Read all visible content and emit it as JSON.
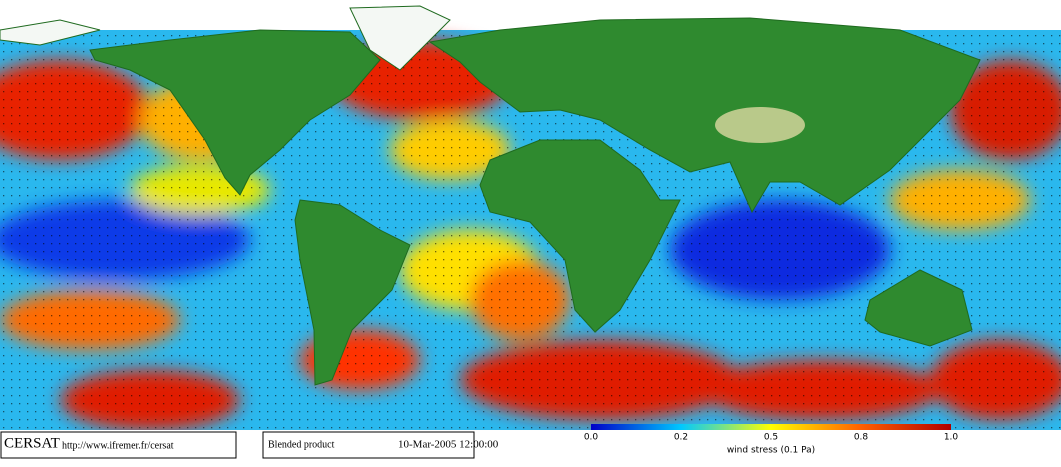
{
  "footer": {
    "brand": "CERSAT",
    "url": "http://www.ifremer.fr/cersat",
    "product": "Blended product",
    "date": "10-Mar-2005 12:00:00"
  },
  "legend": {
    "ticks": [
      "0.0",
      "0.2",
      "0.5",
      "0.8",
      "1.0"
    ],
    "label": "wind stress (0.1 Pa)"
  }
}
